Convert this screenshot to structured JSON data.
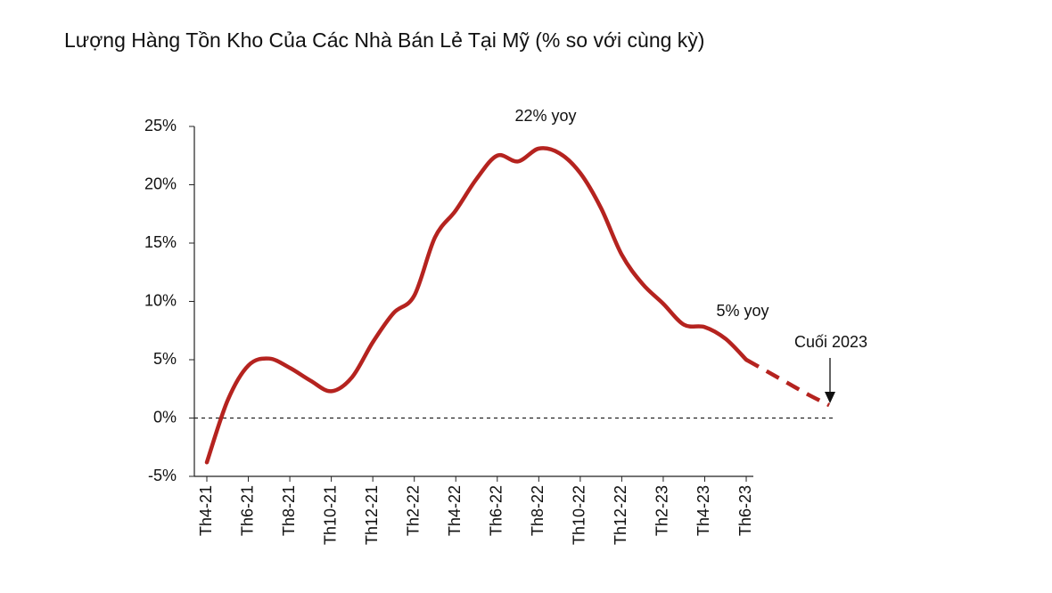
{
  "chart_data": {
    "type": "line",
    "title": "Lượng Hàng Tồn Kho Của Các Nhà Bán Lẻ Tại Mỹ (% so với cùng kỳ)",
    "categories": [
      "Th4-21",
      null,
      "Th6-21",
      null,
      "Th8-21",
      null,
      "Th10-21",
      null,
      "Th12-21",
      null,
      "Th2-22",
      null,
      "Th4-22",
      null,
      "Th6-22",
      null,
      "Th8-22",
      null,
      "Th10-22",
      null,
      "Th12-22",
      null,
      "Th2-23",
      null,
      "Th4-23",
      null,
      "Th6-23",
      null,
      null,
      null,
      null
    ],
    "series": [
      {
        "color": "#b5231f",
        "values": [
          -3.8,
          1.5,
          4.5,
          5.1,
          4.3,
          3.2,
          2.3,
          3.5,
          6.5,
          9.0,
          10.5,
          15.5,
          17.8,
          20.5,
          22.5,
          22.0,
          23.1,
          22.7,
          21.0,
          18.0,
          14.0,
          11.5,
          9.8,
          8.0,
          7.8,
          6.8,
          5.0,
          null,
          null,
          null,
          null
        ]
      },
      {
        "color": "#b5231f",
        "dashed": true,
        "values": [
          null,
          null,
          null,
          null,
          null,
          null,
          null,
          null,
          null,
          null,
          null,
          null,
          null,
          null,
          null,
          null,
          null,
          null,
          null,
          null,
          null,
          null,
          null,
          null,
          null,
          null,
          5.0,
          4.0,
          3.0,
          2.0,
          1.1
        ]
      }
    ],
    "ylim": [
      -5,
      25
    ],
    "yticks": [
      {
        "value": -5,
        "label": "-5%"
      },
      {
        "value": 0,
        "label": "0%"
      },
      {
        "value": 5,
        "label": "5%"
      },
      {
        "value": 10,
        "label": "10%"
      },
      {
        "value": 15,
        "label": "15%"
      },
      {
        "value": 20,
        "label": "20%"
      },
      {
        "value": 25,
        "label": "25%"
      }
    ],
    "annotations": [
      "22% yoy",
      "5% yoy",
      "Cuối 2023"
    ]
  }
}
